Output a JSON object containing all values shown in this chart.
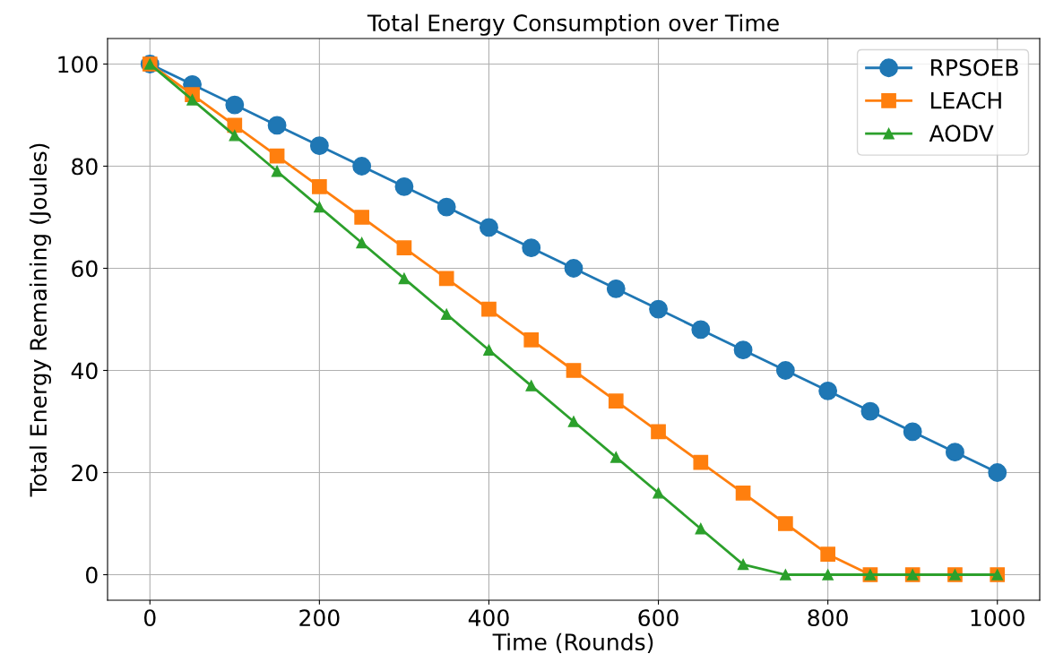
{
  "chart_data": {
    "type": "line",
    "title": "Total Energy Consumption over Time",
    "xlabel": "Time (Rounds)",
    "ylabel": "Total Energy Remaining (Joules)",
    "x": [
      0,
      50,
      100,
      150,
      200,
      250,
      300,
      350,
      400,
      450,
      500,
      550,
      600,
      650,
      700,
      750,
      800,
      850,
      900,
      950,
      1000
    ],
    "series": [
      {
        "name": "RPSOEB",
        "color": "#1f77b4",
        "marker": "circle",
        "values": [
          100,
          96,
          92,
          88,
          84,
          80,
          76,
          72,
          68,
          64,
          60,
          56,
          52,
          48,
          44,
          40,
          36,
          32,
          28,
          24,
          20
        ]
      },
      {
        "name": "LEACH",
        "color": "#ff7f0e",
        "marker": "square",
        "values": [
          100,
          94,
          88,
          82,
          76,
          70,
          64,
          58,
          52,
          46,
          40,
          34,
          28,
          22,
          16,
          10,
          4,
          0,
          0,
          0,
          0
        ]
      },
      {
        "name": "AODV",
        "color": "#2ca02c",
        "marker": "triangle",
        "values": [
          100,
          93,
          86,
          79,
          72,
          65,
          58,
          51,
          44,
          37,
          30,
          23,
          16,
          9,
          2,
          0,
          0,
          0,
          0,
          0,
          0
        ]
      }
    ],
    "xlim": [
      -50,
      1050
    ],
    "ylim": [
      -5,
      105
    ],
    "xticks": [
      0,
      200,
      400,
      600,
      800,
      1000
    ],
    "yticks": [
      0,
      20,
      40,
      60,
      80,
      100
    ],
    "grid": true,
    "legend": "top right",
    "line_style": "solid"
  }
}
